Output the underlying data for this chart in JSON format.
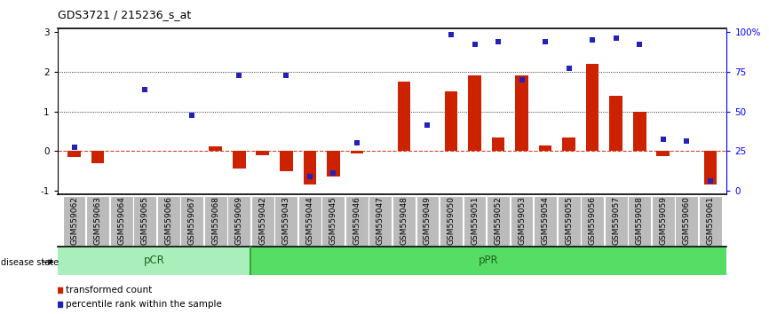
{
  "title": "GDS3721 / 215236_s_at",
  "categories": [
    "GSM559062",
    "GSM559063",
    "GSM559064",
    "GSM559065",
    "GSM559066",
    "GSM559067",
    "GSM559068",
    "GSM559069",
    "GSM559042",
    "GSM559043",
    "GSM559044",
    "GSM559045",
    "GSM559046",
    "GSM559047",
    "GSM559048",
    "GSM559049",
    "GSM559050",
    "GSM559051",
    "GSM559052",
    "GSM559053",
    "GSM559054",
    "GSM559055",
    "GSM559056",
    "GSM559057",
    "GSM559058",
    "GSM559059",
    "GSM559060",
    "GSM559061"
  ],
  "red_bars": [
    -0.15,
    -0.3,
    0.0,
    0.0,
    0.0,
    0.0,
    0.12,
    -0.45,
    -0.1,
    -0.5,
    -0.85,
    -0.65,
    -0.05,
    0.0,
    1.75,
    0.0,
    1.5,
    1.9,
    0.35,
    1.9,
    0.15,
    0.35,
    2.2,
    1.4,
    1.0,
    -0.12,
    0.0,
    -0.85
  ],
  "blue_dots": [
    0.1,
    null,
    null,
    1.55,
    null,
    0.9,
    null,
    1.9,
    null,
    1.9,
    -0.65,
    -0.55,
    0.2,
    null,
    null,
    0.65,
    2.95,
    2.7,
    2.75,
    1.8,
    2.75,
    2.1,
    2.8,
    2.85,
    2.7,
    0.3,
    0.25,
    -0.75
  ],
  "pcr_count": 8,
  "ppr_count": 20,
  "ylim": [
    -1.1,
    3.1
  ],
  "bar_color": "#cc2200",
  "dot_color": "#2222bb",
  "pcr_color": "#aaeebb",
  "ppr_color": "#55dd66",
  "label_bg_color": "#bbbbbb",
  "bar_width": 0.55
}
